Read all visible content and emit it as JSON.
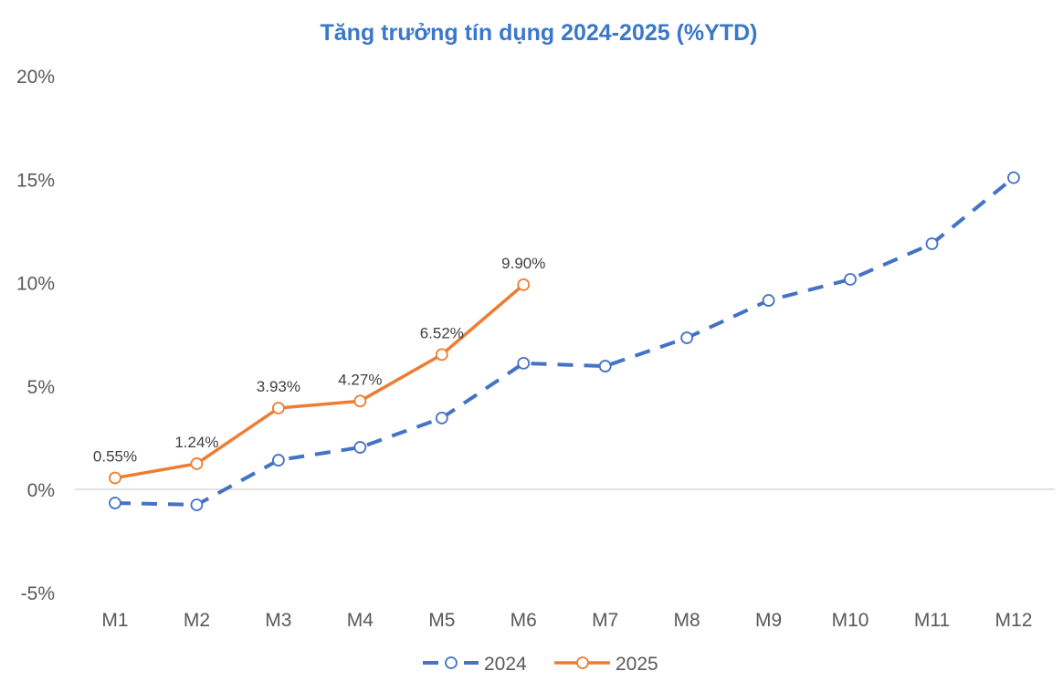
{
  "title": "Tăng trưởng tín dụng 2024-2025 (%YTD)",
  "colors": {
    "title": "#3a78c9",
    "series_2024": "#4472c4",
    "series_2025": "#ed7d31",
    "gridline": "#d9d9d9",
    "tick_text": "#595959"
  },
  "chart_data": {
    "type": "line",
    "title": "Tăng trưởng tín dụng 2024-2025 (%YTD)",
    "xlabel": "",
    "ylabel": "",
    "categories": [
      "M1",
      "M2",
      "M3",
      "M4",
      "M5",
      "M6",
      "M7",
      "M8",
      "M9",
      "M10",
      "M11",
      "M12"
    ],
    "y_ticks": [
      "20%",
      "15%",
      "10%",
      "5%",
      "0%",
      "-5%"
    ],
    "y_tick_values": [
      20,
      15,
      10,
      5,
      0,
      -5
    ],
    "ylim": [
      -5,
      20
    ],
    "grid": "zero-line only",
    "legend_position": "bottom",
    "series": [
      {
        "name": "2024",
        "style": "dashed line, hollow circle markers",
        "color": "#4472c4",
        "values": [
          -0.66,
          -0.75,
          1.41,
          2.03,
          3.45,
          6.1,
          5.96,
          7.33,
          9.14,
          10.16,
          11.88,
          15.08
        ],
        "data_labels": []
      },
      {
        "name": "2025",
        "style": "solid line, hollow circle markers",
        "color": "#ed7d31",
        "values": [
          0.55,
          1.24,
          3.93,
          4.27,
          6.52,
          9.9
        ],
        "data_labels": [
          "0.55%",
          "1.24%",
          "3.93%",
          "4.27%",
          "6.52%",
          "9.90%"
        ]
      }
    ]
  },
  "legend": {
    "items": [
      {
        "label": "2024"
      },
      {
        "label": "2025"
      }
    ]
  }
}
